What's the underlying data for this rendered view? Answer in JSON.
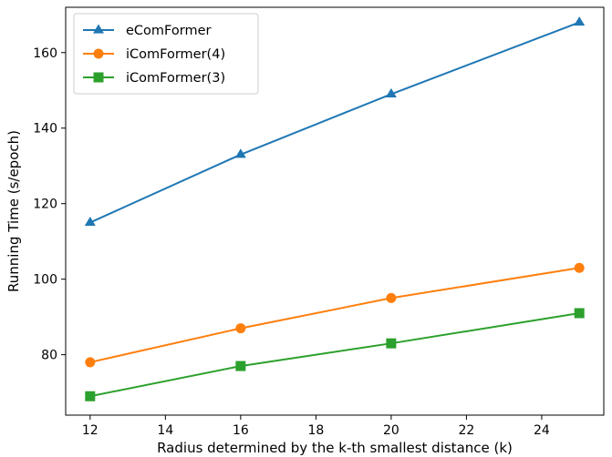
{
  "chart_data": {
    "type": "line",
    "xlabel": "Radius determined by the k-th smallest distance (k)",
    "ylabel": "Running Time (s/epoch)",
    "x": [
      12,
      16,
      20,
      25
    ],
    "xlim": [
      11.35,
      25.65
    ],
    "ylim": [
      64,
      172
    ],
    "xticks": [
      12,
      14,
      16,
      18,
      20,
      22,
      24
    ],
    "yticks": [
      80,
      100,
      120,
      140,
      160
    ],
    "grid": false,
    "legend_position": "top-left",
    "series": [
      {
        "name": "eComFormer",
        "values": [
          115,
          133,
          149,
          168
        ],
        "color": "#1f77b4",
        "marker": "triangle"
      },
      {
        "name": "iComFormer(4)",
        "values": [
          78,
          87,
          95,
          103
        ],
        "color": "#ff7f0e",
        "marker": "circle"
      },
      {
        "name": "iComFormer(3)",
        "values": [
          69,
          77,
          83,
          91
        ],
        "color": "#2ca02c",
        "marker": "square"
      }
    ]
  }
}
